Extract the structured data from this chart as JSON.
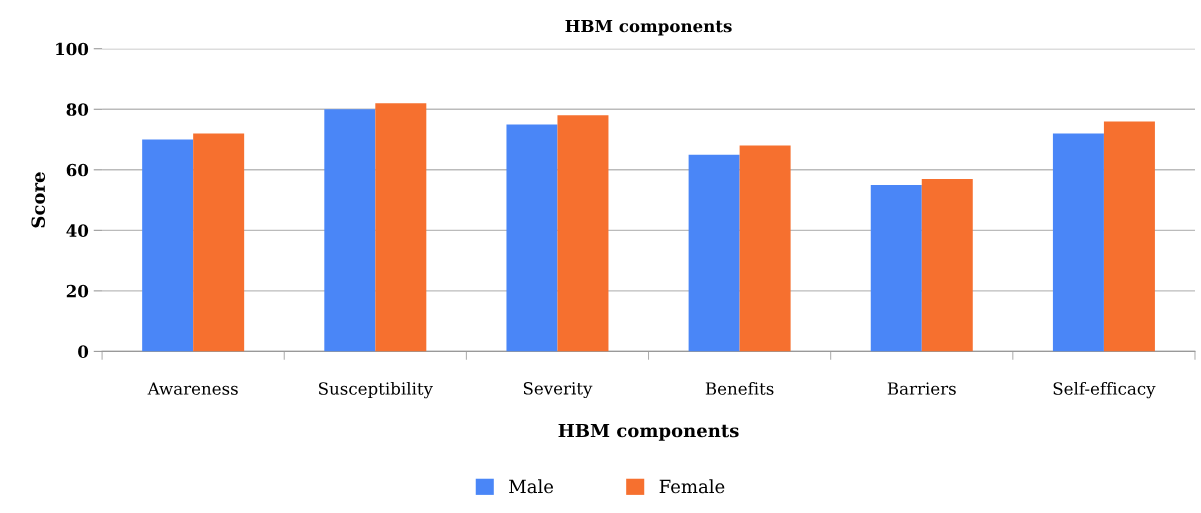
{
  "chart_data": {
    "type": "bar",
    "title": "HBM components",
    "xlabel": "HBM components",
    "ylabel": "Score",
    "categories": [
      "Awareness",
      "Susceptibility",
      "Severity",
      "Benefits",
      "Barriers",
      "Self-efficacy"
    ],
    "series": [
      {
        "name": "Male",
        "color": "#4a86f7",
        "values": [
          70,
          80,
          75,
          65,
          55,
          72
        ]
      },
      {
        "name": "Female",
        "color": "#f6702f",
        "values": [
          72,
          82,
          78,
          68,
          57,
          76
        ]
      }
    ],
    "ylim": [
      0,
      100
    ],
    "yticks": [
      0,
      20,
      40,
      60,
      80,
      100
    ],
    "grid": "y",
    "legend": "bottom"
  }
}
